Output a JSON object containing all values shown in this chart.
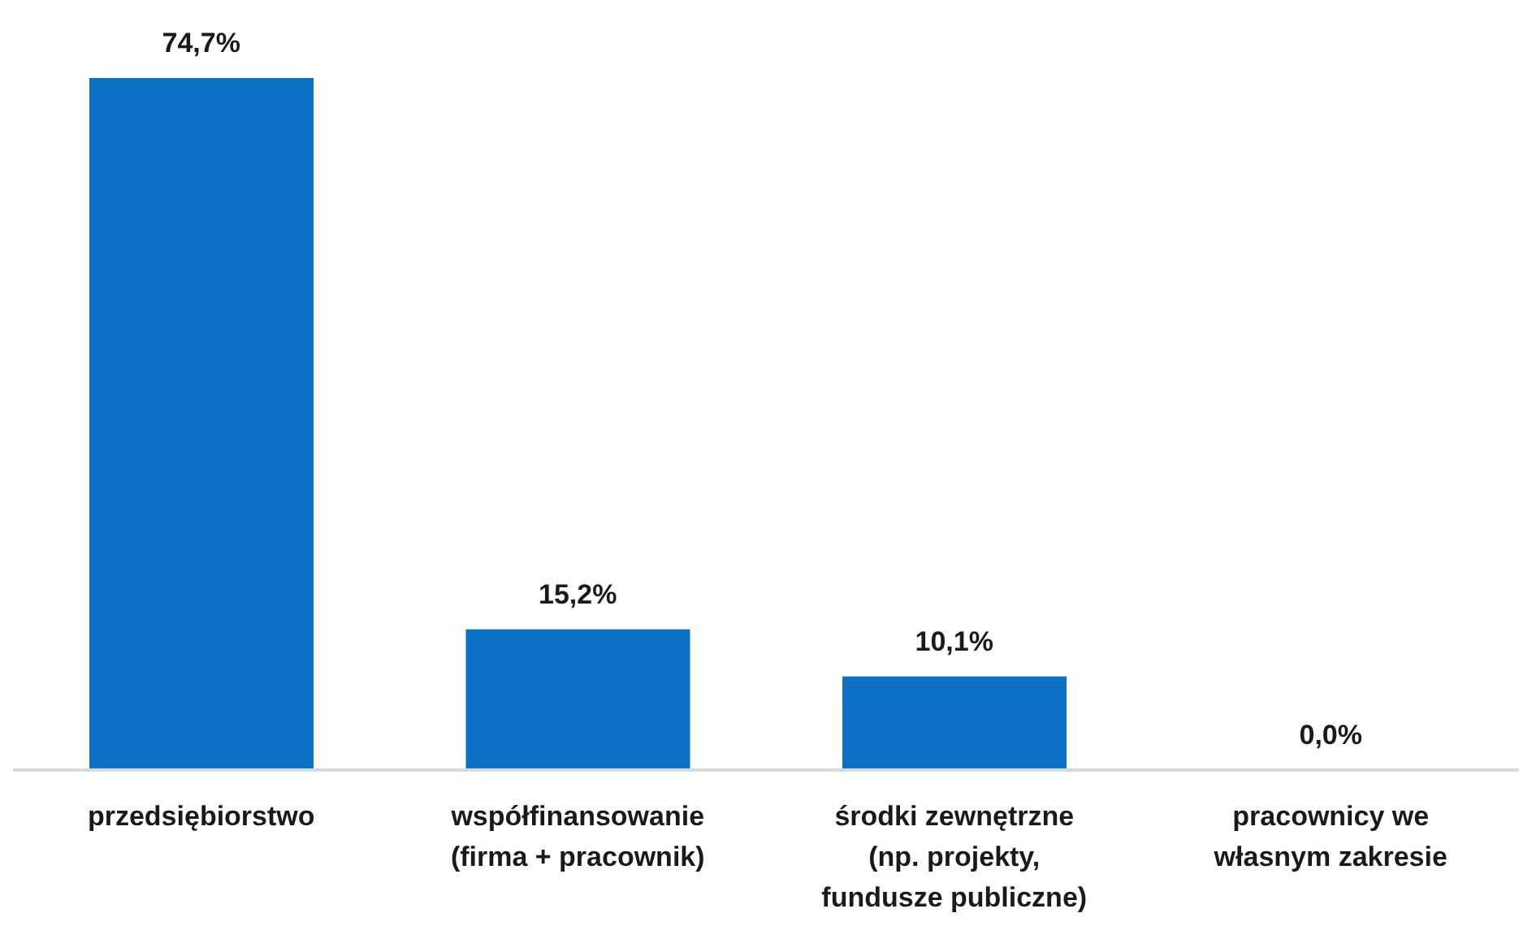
{
  "chart_data": {
    "type": "bar",
    "categories": [
      "przedsiębiorstwo",
      "współfinansowanie (firma + pracownik)",
      "środki zewnętrzne (np. projekty, fundusze publiczne)",
      "pracownicy we własnym zakresie"
    ],
    "values": [
      74.7,
      15.2,
      10.1,
      0.0
    ],
    "value_labels": [
      "74,7%",
      "15,2%",
      "10,1%",
      "0,0%"
    ],
    "color": "#0b72c6",
    "grid": false,
    "legend": false
  }
}
